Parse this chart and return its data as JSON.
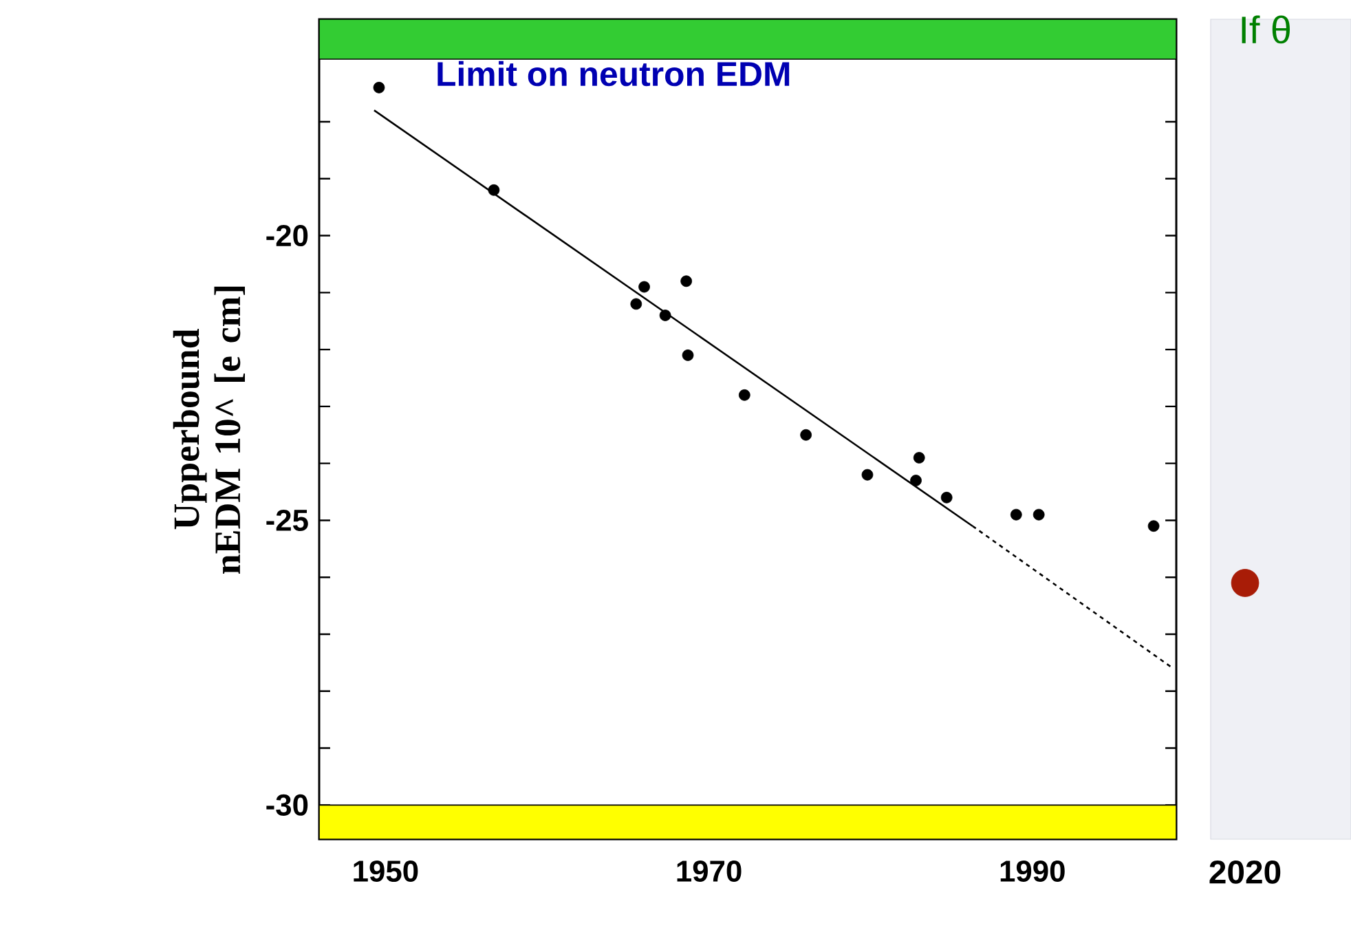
{
  "chart_data": [
    {
      "type": "scatter",
      "title": "Limit on neutron EDM",
      "ylabel": "Upperbound nEDM 10^ [e cm]",
      "xlim": [
        1945.9,
        1998.9
      ],
      "xticks": [
        1950,
        1970,
        1990
      ],
      "ylim": [
        -30.6,
        -16.2
      ],
      "yticks": [
        -30,
        {
          "value": -29,
          "label": null
        },
        {
          "value": -28,
          "label": null
        },
        {
          "value": -27,
          "label": null
        },
        {
          "value": -26,
          "label": null
        },
        -25,
        {
          "value": -24,
          "label": null
        },
        {
          "value": -23,
          "label": null
        },
        {
          "value": -22,
          "label": null
        },
        {
          "value": -21,
          "label": null
        },
        -20,
        {
          "value": -19,
          "label": null
        },
        {
          "value": -18,
          "label": null
        }
      ],
      "series": [
        {
          "marker": "circle",
          "color": "#000000",
          "x": [
            1949.6,
            1956.7,
            1966.0,
            1965.5,
            1967.3,
            1968.6,
            1968.7,
            1972.2,
            1976.0,
            1979.8,
            1983.0,
            1982.8,
            1984.7,
            1989.0,
            1990.4,
            1997.5
          ],
          "values": [
            -17.4,
            -19.2,
            -20.9,
            -21.2,
            -21.4,
            -20.8,
            -22.1,
            -22.8,
            -23.5,
            -24.2,
            -23.9,
            -24.3,
            -24.6,
            -24.9,
            -24.9,
            -25.1
          ]
        },
        {
          "type": "line",
          "marker": "none",
          "line_style": "solid",
          "color": "#000000",
          "x": [
            1949.3,
            1986.3
          ],
          "values": [
            -17.8,
            -25.1
          ]
        },
        {
          "type": "line",
          "marker": "none",
          "line_style": "dashed",
          "color": "#000000",
          "x": [
            1986.3,
            1998.7
          ],
          "values": [
            -25.1,
            -27.6
          ]
        }
      ],
      "bands": [
        {
          "axis": "y",
          "from": -16.9,
          "to": -16.2,
          "color": "#33cc33"
        },
        {
          "axis": "y",
          "from": -30.6,
          "to": -30.0,
          "color": "#ffff00"
        }
      ]
    },
    {
      "type": "scatter",
      "categories": [
        "2020"
      ],
      "ylim": [
        -30.6,
        -16.2
      ],
      "tick_labels": "x",
      "annotations": [
        "If θ"
      ],
      "series": [
        {
          "marker": "circle",
          "color": "#a81c07",
          "values": [
            -26.1
          ]
        }
      ]
    }
  ]
}
